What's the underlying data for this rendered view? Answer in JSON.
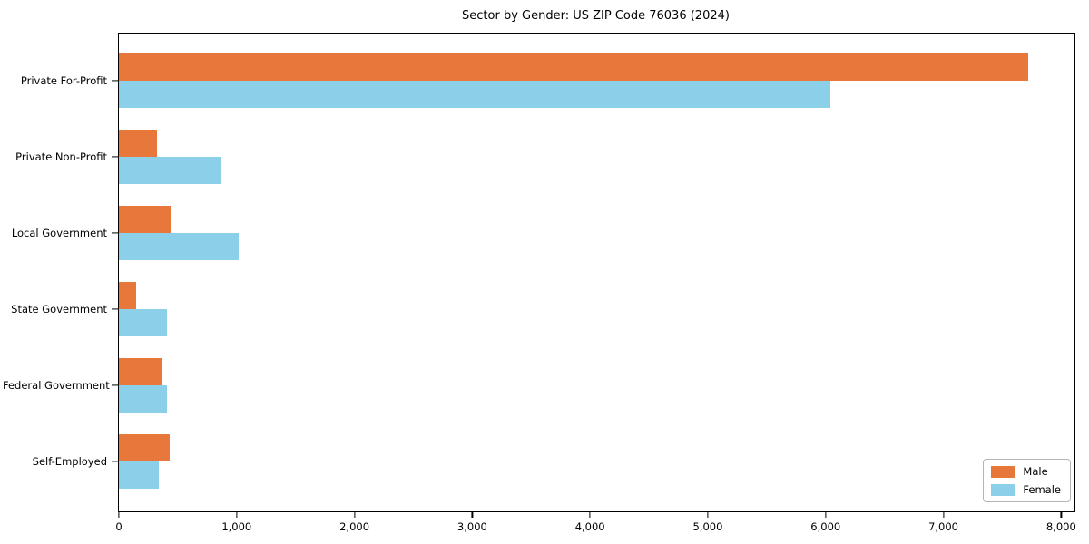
{
  "chart_data": {
    "type": "bar",
    "orientation": "horizontal",
    "title": "Sector by Gender: US ZIP Code 76036 (2024)",
    "categories": [
      "Private For-Profit",
      "Private Non-Profit",
      "Local Government",
      "State Government",
      "Federal Government",
      "Self-Employed"
    ],
    "series": [
      {
        "name": "Male",
        "color": "#e8773c",
        "values": [
          7717,
          326,
          437,
          149,
          360,
          432
        ]
      },
      {
        "name": "Female",
        "color": "#8bcfe9",
        "values": [
          6037,
          866,
          1015,
          406,
          411,
          342
        ]
      }
    ],
    "xlabel": "",
    "ylabel": "",
    "xlim": [
      0,
      8113
    ],
    "xticks": [
      0,
      1000,
      2000,
      3000,
      4000,
      5000,
      6000,
      7000,
      8000
    ],
    "xticklabels": [
      "0",
      "1,000",
      "2,000",
      "3,000",
      "4,000",
      "5,000",
      "6,000",
      "7,000",
      "8,000"
    ],
    "grid": false,
    "legend_position": "lower right"
  }
}
